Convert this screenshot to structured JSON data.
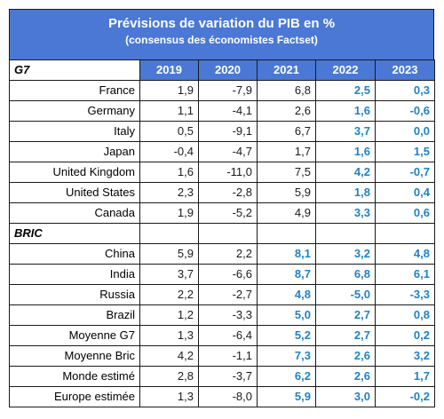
{
  "title": "Prévisions de variation du PIB en %",
  "subtitle": "(consensus des économistes Factset)",
  "years": [
    "2019",
    "2020",
    "2021",
    "2022",
    "2023"
  ],
  "group_g7": "G7",
  "group_bric": "BRIC",
  "colors": {
    "header": "#4a78d4",
    "forecast_text": "#1e82c8"
  },
  "rows_g7": [
    {
      "name": "France",
      "values": [
        "1,9",
        "-7,9",
        "6,8",
        "2,5",
        "0,3"
      ],
      "forecast": [
        false,
        false,
        false,
        true,
        true
      ]
    },
    {
      "name": "Germany",
      "values": [
        "1,1",
        "-4,1",
        "2,6",
        "1,6",
        "-0,6"
      ],
      "forecast": [
        false,
        false,
        false,
        true,
        true
      ]
    },
    {
      "name": "Italy",
      "values": [
        "0,5",
        "-9,1",
        "6,7",
        "3,7",
        "0,0"
      ],
      "forecast": [
        false,
        false,
        false,
        true,
        true
      ]
    },
    {
      "name": "Japan",
      "values": [
        "-0,4",
        "-4,7",
        "1,7",
        "1,6",
        "1,5"
      ],
      "forecast": [
        false,
        false,
        false,
        true,
        true
      ]
    },
    {
      "name": "United Kingdom",
      "values": [
        "1,6",
        "-11,0",
        "7,5",
        "4,2",
        "-0,7"
      ],
      "forecast": [
        false,
        false,
        false,
        true,
        true
      ]
    },
    {
      "name": "United States",
      "values": [
        "2,3",
        "-2,8",
        "5,9",
        "1,8",
        "0,4"
      ],
      "forecast": [
        false,
        false,
        false,
        true,
        true
      ]
    },
    {
      "name": "Canada",
      "values": [
        "1,9",
        "-5,2",
        "4,9",
        "3,3",
        "0,6"
      ],
      "forecast": [
        false,
        false,
        false,
        true,
        true
      ]
    }
  ],
  "rows_bric": [
    {
      "name": "China",
      "values": [
        "5,9",
        "2,2",
        "8,1",
        "3,2",
        "4,8"
      ],
      "forecast": [
        false,
        false,
        true,
        true,
        true
      ]
    },
    {
      "name": "India",
      "values": [
        "3,7",
        "-6,6",
        "8,7",
        "6,8",
        "6,1"
      ],
      "forecast": [
        false,
        false,
        true,
        true,
        true
      ]
    },
    {
      "name": "Russia",
      "values": [
        "2,2",
        "-2,7",
        "4,8",
        "-5,0",
        "-3,3"
      ],
      "forecast": [
        false,
        false,
        true,
        true,
        true
      ]
    },
    {
      "name": "Brazil",
      "values": [
        "1,2",
        "-3,3",
        "5,0",
        "2,7",
        "0,8"
      ],
      "forecast": [
        false,
        false,
        true,
        true,
        true
      ]
    },
    {
      "name": "Moyenne G7",
      "values": [
        "1,3",
        "-6,4",
        "5,2",
        "2,7",
        "0,2"
      ],
      "forecast": [
        false,
        false,
        true,
        true,
        true
      ]
    },
    {
      "name": "Moyenne Bric",
      "values": [
        "4,2",
        "-1,1",
        "7,3",
        "2,6",
        "3,2"
      ],
      "forecast": [
        false,
        false,
        true,
        true,
        true
      ]
    },
    {
      "name": "Monde estimé",
      "values": [
        "2,8",
        "-3,7",
        "6,2",
        "2,6",
        "1,7"
      ],
      "forecast": [
        false,
        false,
        true,
        true,
        true
      ]
    },
    {
      "name": "Europe estimée",
      "values": [
        "1,3",
        "-8,0",
        "5,9",
        "3,0",
        "-0,2"
      ],
      "forecast": [
        false,
        false,
        true,
        true,
        true
      ]
    }
  ]
}
